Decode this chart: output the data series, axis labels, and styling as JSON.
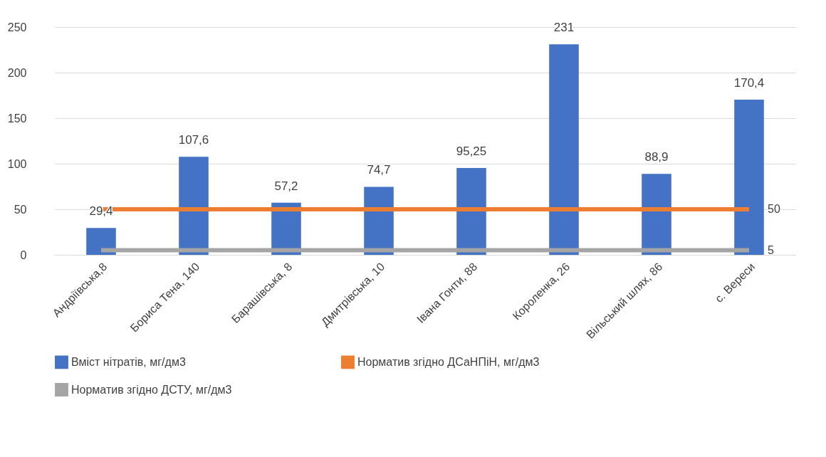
{
  "chart_data": {
    "type": "bar",
    "categories": [
      "Андріївська,8",
      "Бориса Тена, 140",
      "Барашівська, 8",
      "Дмитрівська, 10",
      "Івана Гонти, 88",
      "Короленка, 26",
      "Вільський шлях, 86",
      "с. Вереси"
    ],
    "series": [
      {
        "name": "Вміст нітратів, мг/дм3",
        "color": "#4472c4",
        "values": [
          29.4,
          107.6,
          57.2,
          74.7,
          95.25,
          231,
          88.9,
          170.4
        ],
        "value_labels": [
          "29,4",
          "107,6",
          "57,2",
          "74,7",
          "95,25",
          "231",
          "88,9",
          "170,4"
        ]
      },
      {
        "name": "Норматив згідно ДСаНПіН, мг/дм3",
        "type": "line",
        "color": "#ed7d31",
        "values": [
          50,
          50,
          50,
          50,
          50,
          50,
          50,
          50
        ],
        "value_labels": [
          null,
          null,
          null,
          null,
          null,
          null,
          null,
          "50"
        ]
      },
      {
        "name": "Норматив згідно ДСТУ, мг/дм3",
        "type": "line",
        "color": "#a5a5a5",
        "values": [
          5,
          5,
          5,
          5,
          5,
          5,
          5,
          5
        ],
        "value_labels": [
          null,
          null,
          null,
          null,
          null,
          null,
          null,
          "5"
        ]
      }
    ],
    "ylim": [
      0,
      250
    ],
    "yticks": [
      0,
      50,
      100,
      150,
      200,
      250
    ],
    "grid": "y",
    "legend": "bottom",
    "marker": "none",
    "line_style": "solid"
  }
}
